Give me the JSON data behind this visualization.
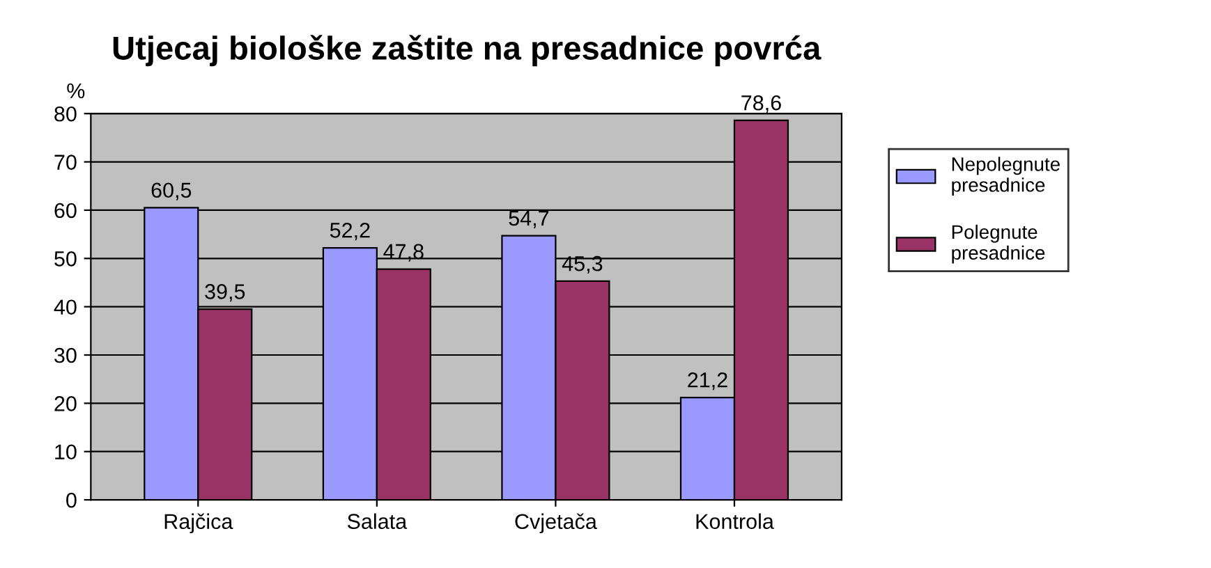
{
  "chart_data": {
    "type": "bar",
    "title": "Utjecaj biološke zaštite na presadnice povrća",
    "ylabel": "%",
    "categories": [
      "Rajčica",
      "Salata",
      "Cvjetača",
      "Kontrola"
    ],
    "series": [
      {
        "name": "Nepolegnute\npresadnice",
        "color": "#9999ff",
        "values": [
          60.5,
          52.2,
          54.7,
          21.2
        ],
        "value_labels": [
          "60,5",
          "52,2",
          "54,7",
          "21,2"
        ]
      },
      {
        "name": "Polegnute\npresadnice",
        "color": "#993366",
        "values": [
          39.5,
          47.8,
          45.3,
          78.6
        ],
        "value_labels": [
          "39,5",
          "47,8",
          "45,3",
          "78,6"
        ]
      }
    ],
    "ylim": [
      0,
      80
    ],
    "yticks": [
      0,
      10,
      20,
      30,
      40,
      50,
      60,
      70,
      80
    ],
    "grid": "y",
    "legend": "right"
  }
}
